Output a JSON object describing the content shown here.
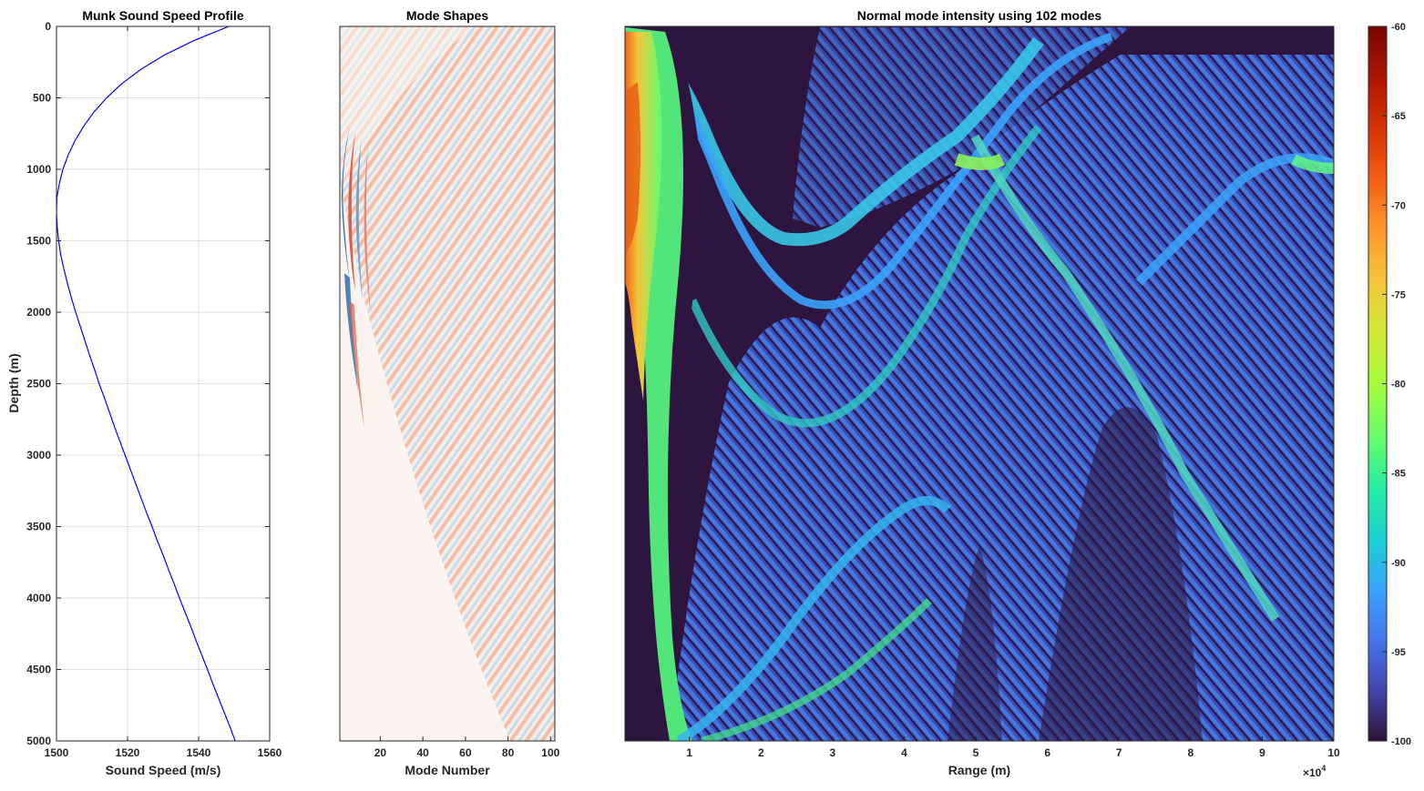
{
  "chart_data": [
    {
      "type": "line",
      "title": "Munk Sound Speed Profile",
      "xlabel": "Sound Speed (m/s)",
      "ylabel": "Depth (m)",
      "xlim": [
        1500,
        1560
      ],
      "ylim": [
        0,
        5000
      ],
      "y_reversed": true,
      "grid": true,
      "xticks": [
        1500,
        1520,
        1540,
        1560
      ],
      "yticks": [
        0,
        500,
        1000,
        1500,
        2000,
        2500,
        3000,
        3500,
        4000,
        4500,
        5000
      ],
      "line_color": "#0000ff",
      "series": [
        {
          "x": [
            1548.5,
            1538.6,
            1530.4,
            1523.8,
            1518.4,
            1514.1,
            1510.5,
            1507.6,
            1505.2,
            1503.3,
            1501.8,
            1500.8,
            1500.1,
            1500.0,
            1500.2,
            1500.6,
            1501.2,
            1502.1,
            1503.1,
            1504.2,
            1505.4,
            1506.7,
            1508.0,
            1509.3,
            1510.7,
            1512.0,
            1513.5,
            1514.9,
            1516.3,
            1517.8,
            1519.3,
            1520.8,
            1522.3,
            1523.8,
            1525.3,
            1526.9,
            1528.4,
            1530.0,
            1531.5,
            1533.1,
            1534.6,
            1536.2,
            1537.8,
            1539.3,
            1540.9,
            1542.5,
            1544.0,
            1545.6,
            1547.2,
            1548.8,
            1550.3,
            1551.9
          ],
          "y": [
            0,
            100,
            200,
            300,
            400,
            500,
            600,
            700,
            800,
            900,
            1000,
            1100,
            1200,
            1300,
            1400,
            1500,
            1600,
            1700,
            1800,
            1900,
            2000,
            2100,
            2200,
            2300,
            2400,
            2500,
            2600,
            2700,
            2800,
            2900,
            3000,
            3100,
            3200,
            3300,
            3400,
            3500,
            3600,
            3700,
            3800,
            3900,
            4000,
            4100,
            4200,
            4300,
            4400,
            4500,
            4600,
            4700,
            4800,
            4900,
            5000,
            5100
          ]
        }
      ]
    },
    {
      "type": "heatmap",
      "title": "Mode Shapes",
      "xlabel": "Mode Number",
      "xlim": [
        1,
        102
      ],
      "ylim": [
        0,
        5000
      ],
      "y_reversed": true,
      "xticks": [
        20,
        40,
        60,
        80,
        100
      ],
      "colormap": "diverging blue-white-red",
      "colors": {
        "negative": "#2166ac",
        "neutral": "#faf3ef",
        "positive": "#d6604d"
      },
      "description_values": {
        "modes": 102,
        "sound_channel_axis_depth": 1300
      }
    },
    {
      "type": "heatmap",
      "title": "Normal mode intensity using 102 modes",
      "xlabel": "Range (m)",
      "x_multiplier": "×10^4",
      "x_multiplier_base": "×10",
      "x_multiplier_exp": "4",
      "xlim": [
        0.1,
        10
      ],
      "ylim": [
        0,
        5000
      ],
      "y_reversed": true,
      "xticks": [
        1,
        2,
        3,
        4,
        5,
        6,
        7,
        8,
        9,
        10
      ],
      "colormap": "turbo",
      "colorbar": {
        "limits": [
          -100,
          -60
        ],
        "ticks": [
          -60,
          -65,
          -70,
          -75,
          -80,
          -85,
          -90,
          -95,
          -100
        ]
      },
      "background_color": "#2e1540"
    }
  ]
}
